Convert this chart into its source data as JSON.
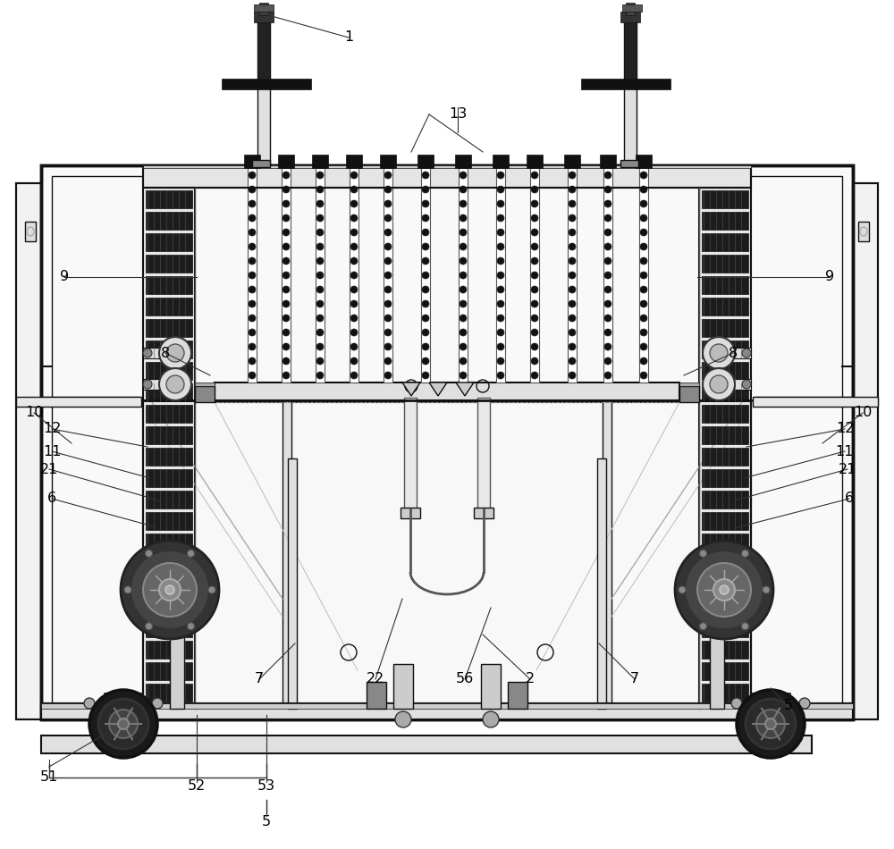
{
  "bg_color": "#ffffff",
  "line_color": "#111111",
  "dark_color": "#1a1a1a",
  "gray_color": "#888888",
  "light_gray": "#cccccc",
  "mid_gray": "#555555",
  "figsize": [
    10.0,
    9.5
  ],
  "dpi": 100,
  "xlim": [
    0,
    1000
  ],
  "ylim": [
    0,
    950
  ]
}
